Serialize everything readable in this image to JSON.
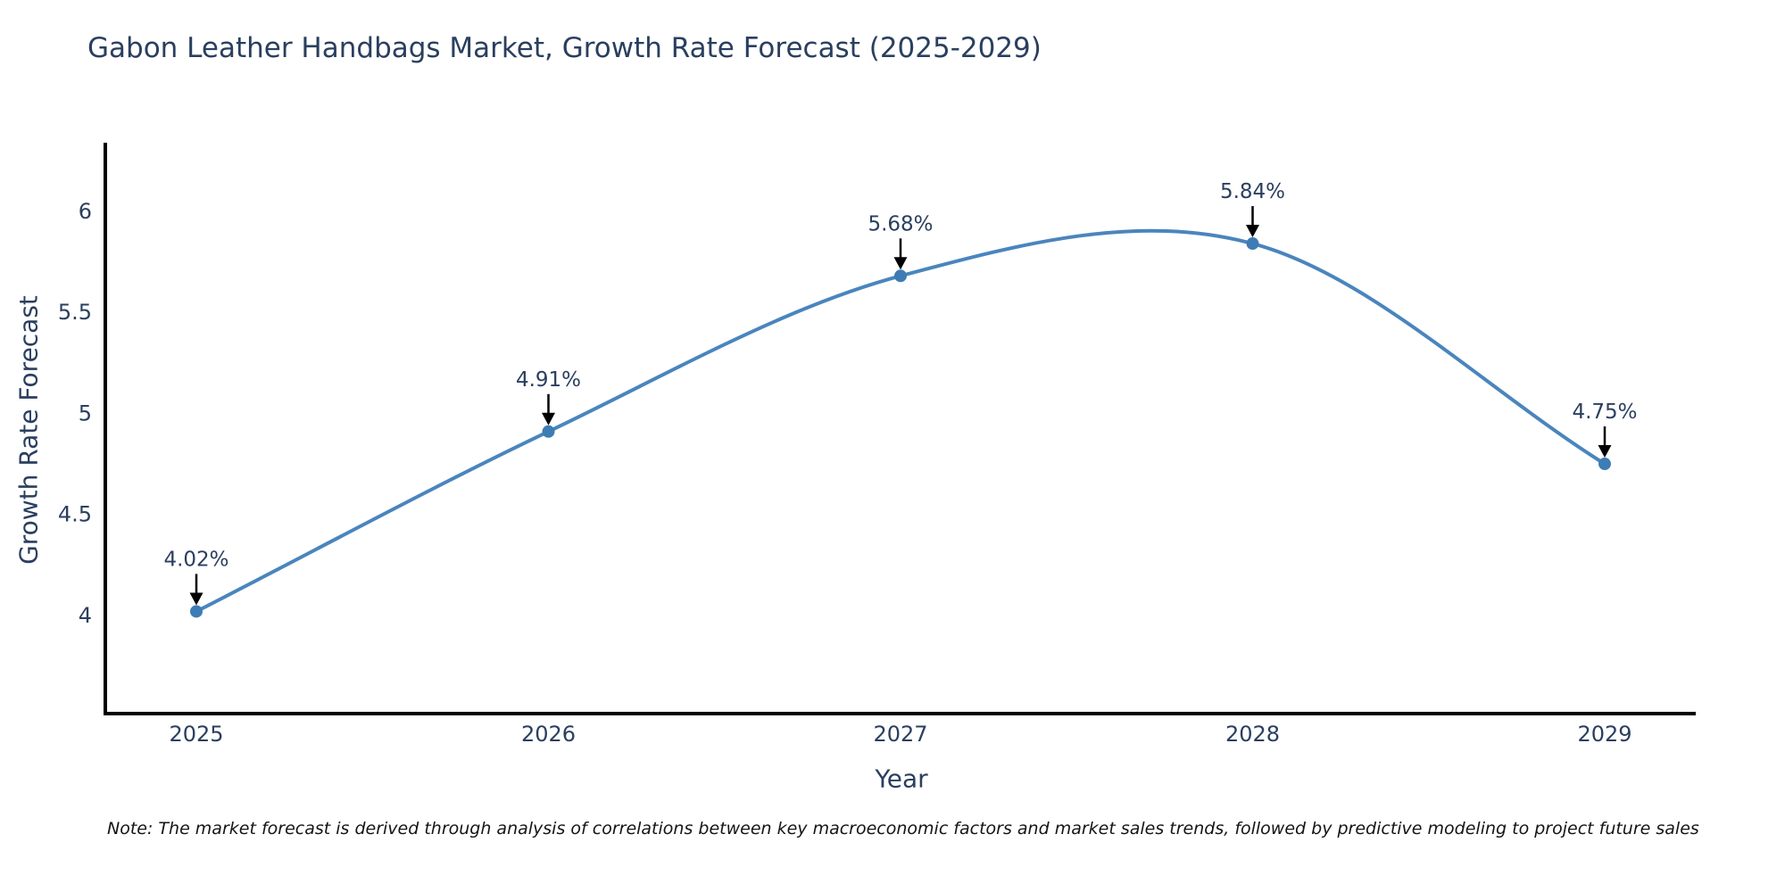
{
  "title": "Gabon Leather Handbags Market, Growth Rate Forecast (2025-2029)",
  "footnote": "Note: The market forecast is derived through analysis of correlations between key macroeconomic factors and market sales trends, followed by predictive modeling to project future sales",
  "chart_data": {
    "type": "line",
    "title": "Gabon Leather Handbags Market, Growth Rate Forecast (2025-2029)",
    "xlabel": "Year",
    "ylabel": "Growth Rate Forecast",
    "categories": [
      "2025",
      "2026",
      "2027",
      "2028",
      "2029"
    ],
    "values": [
      4.02,
      4.91,
      5.68,
      5.84,
      4.75
    ],
    "point_labels": [
      "4.02%",
      "4.91%",
      "5.68%",
      "5.84%",
      "4.75%"
    ],
    "ytick_labels": [
      "4",
      "4.5",
      "5",
      "5.5",
      "6"
    ],
    "ytick_values": [
      4,
      4.5,
      5,
      5.5,
      6
    ],
    "ylim": [
      3.51,
      6.34
    ],
    "line_shape": "spline",
    "grid": "off",
    "legend": "none",
    "colors": {
      "line": "#4a85bd",
      "marker": "#3e7cb5",
      "axis": "#000000",
      "tick_text": "#2a3f5f",
      "annotation_text": "#2a3f5f",
      "annotation_arrow": "#000000",
      "title_text": "#2a3f5f",
      "background": "#ffffff"
    }
  }
}
